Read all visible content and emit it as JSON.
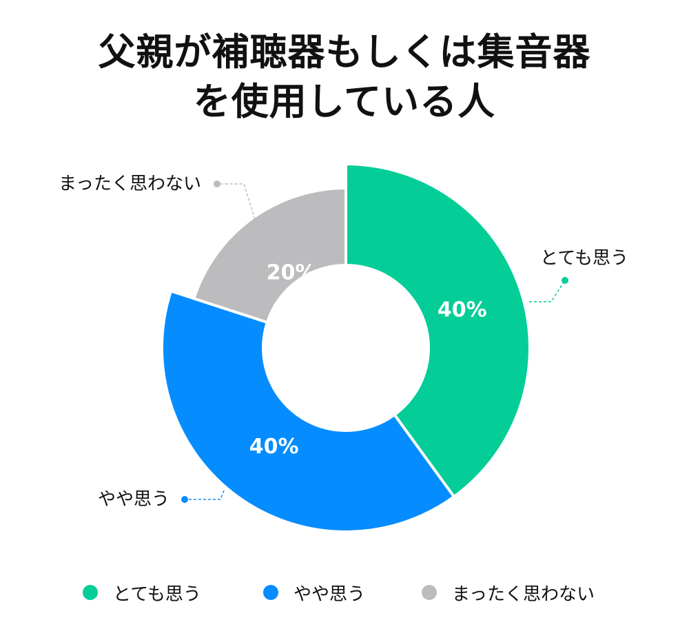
{
  "chart_data": {
    "type": "pie",
    "title_lines": [
      "父親が補聴器もしくは集音器",
      "を使用している人"
    ],
    "categories": [
      "とても思う",
      "やや思う",
      "まったく思わない"
    ],
    "values": [
      40,
      40,
      20
    ],
    "value_labels": [
      "40%",
      "40%",
      "20%"
    ],
    "colors": [
      "#05CD98",
      "#058CFF",
      "#BCBCBE"
    ],
    "legend_position": "bottom"
  }
}
